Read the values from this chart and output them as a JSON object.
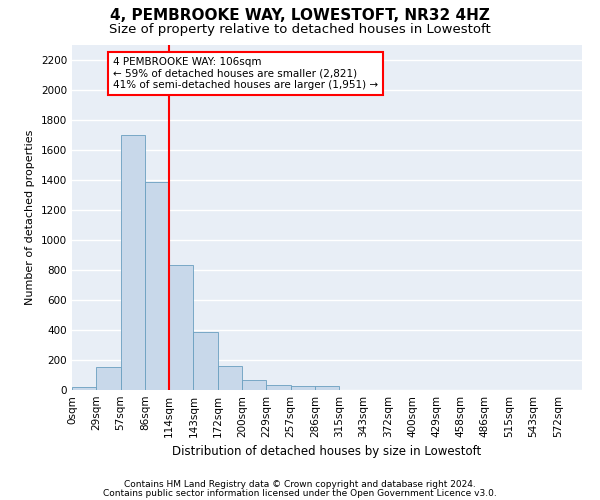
{
  "title": "4, PEMBROOKE WAY, LOWESTOFT, NR32 4HZ",
  "subtitle": "Size of property relative to detached houses in Lowestoft",
  "xlabel": "Distribution of detached houses by size in Lowestoft",
  "ylabel": "Number of detached properties",
  "bin_labels": [
    "0sqm",
    "29sqm",
    "57sqm",
    "86sqm",
    "114sqm",
    "143sqm",
    "172sqm",
    "200sqm",
    "229sqm",
    "257sqm",
    "286sqm",
    "315sqm",
    "343sqm",
    "372sqm",
    "400sqm",
    "429sqm",
    "458sqm",
    "486sqm",
    "515sqm",
    "543sqm",
    "572sqm"
  ],
  "bar_values": [
    20,
    155,
    1700,
    1390,
    835,
    385,
    160,
    65,
    35,
    30,
    27,
    0,
    0,
    0,
    0,
    0,
    0,
    0,
    0,
    0,
    0
  ],
  "bar_color": "#c8d8ea",
  "bar_edge_color": "#6a9fc0",
  "vline_color": "red",
  "vline_x": 4.0,
  "annotation_text": "4 PEMBROOKE WAY: 106sqm\n← 59% of detached houses are smaller (2,821)\n41% of semi-detached houses are larger (1,951) →",
  "ylim": [
    0,
    2300
  ],
  "yticks": [
    0,
    200,
    400,
    600,
    800,
    1000,
    1200,
    1400,
    1600,
    1800,
    2000,
    2200
  ],
  "footer_line1": "Contains HM Land Registry data © Crown copyright and database right 2024.",
  "footer_line2": "Contains public sector information licensed under the Open Government Licence v3.0.",
  "bg_color": "#e8eef6",
  "grid_color": "#ffffff",
  "title_fontsize": 11,
  "subtitle_fontsize": 9.5,
  "xlabel_fontsize": 8.5,
  "ylabel_fontsize": 8,
  "tick_fontsize": 7.5,
  "annotation_fontsize": 7.5,
  "footer_fontsize": 6.5
}
